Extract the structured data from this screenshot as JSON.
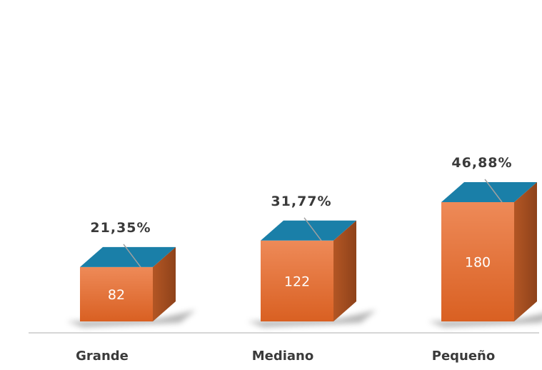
{
  "chart_data": {
    "type": "bar",
    "categories": [
      "Grande",
      "Mediano",
      "Pequeño"
    ],
    "values": [
      82,
      122,
      180
    ],
    "value_labels": [
      "82",
      "122",
      "180"
    ],
    "percent_labels": [
      "21,35%",
      "31,77%",
      "46,88%"
    ],
    "title": "",
    "xlabel": "",
    "ylabel": "",
    "ylim": [
      0,
      190
    ],
    "grid": false,
    "style": "3d-column",
    "colors": {
      "front_top": "#ee8a58",
      "front_bottom": "#d96022",
      "side": "#a84f1f",
      "top": "#1a7fa8",
      "axis": "#c8c8c8",
      "leader": "#a0a0a0"
    }
  }
}
